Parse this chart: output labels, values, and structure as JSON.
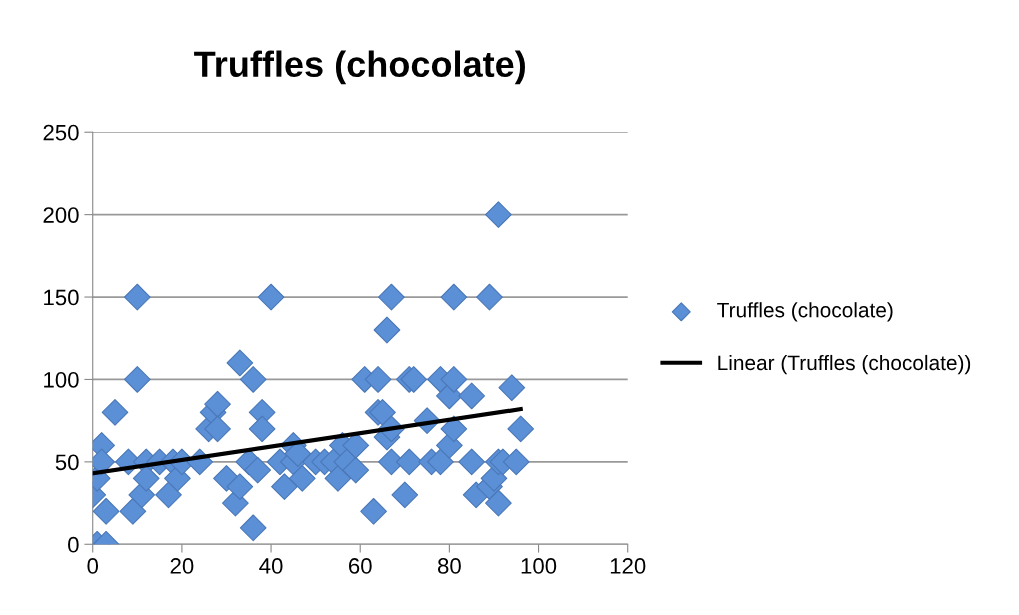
{
  "chart_data": {
    "type": "scatter",
    "title": "Truffles (chocolate)",
    "marker": "diamond",
    "grid": "y",
    "legend": "right",
    "xlim": [
      0,
      120
    ],
    "xticks": [
      0,
      20,
      40,
      60,
      80,
      100,
      120
    ],
    "ylim": [
      0,
      250
    ],
    "yticks": [
      0,
      50,
      100,
      150,
      200,
      250
    ],
    "series": [
      {
        "name": "Truffles (chocolate)",
        "color": "#5b8fd6",
        "x": [
          0,
          1,
          2,
          2,
          1,
          3,
          3,
          5,
          8,
          9,
          10,
          10,
          11,
          12,
          12,
          15,
          17,
          18,
          19,
          20,
          24,
          26,
          27,
          28,
          28,
          30,
          32,
          33,
          33,
          35,
          36,
          36,
          37,
          38,
          38,
          40,
          42,
          43,
          45,
          45,
          46,
          47,
          50,
          52,
          54,
          55,
          56,
          57,
          59,
          59,
          61,
          63,
          64,
          64,
          65,
          66,
          66,
          67,
          67,
          67,
          70,
          71,
          72,
          71,
          75,
          76,
          78,
          78,
          80,
          80,
          81,
          81,
          81,
          85,
          85,
          86,
          89,
          89,
          90,
          91,
          91,
          91,
          92,
          94,
          95,
          96
        ],
        "values": [
          30,
          40,
          60,
          50,
          0,
          0,
          20,
          80,
          50,
          20,
          150,
          100,
          30,
          50,
          40,
          50,
          30,
          50,
          40,
          50,
          50,
          70,
          80,
          85,
          70,
          40,
          25,
          110,
          35,
          50,
          100,
          10,
          45,
          80,
          70,
          150,
          50,
          35,
          50,
          60,
          55,
          40,
          50,
          50,
          50,
          40,
          60,
          50,
          45,
          60,
          100,
          20,
          80,
          100,
          80,
          130,
          65,
          150,
          50,
          70,
          30,
          100,
          100,
          50,
          75,
          50,
          50,
          100,
          90,
          60,
          150,
          100,
          70,
          90,
          50,
          30,
          150,
          35,
          40,
          25,
          200,
          50,
          50,
          95,
          50,
          70
        ]
      },
      {
        "name": "Linear (Truffles (chocolate))",
        "type": "line",
        "color": "#000000",
        "line_style": "solid",
        "marker": "none",
        "x": [
          0,
          96
        ],
        "values": [
          43,
          82
        ]
      }
    ]
  }
}
